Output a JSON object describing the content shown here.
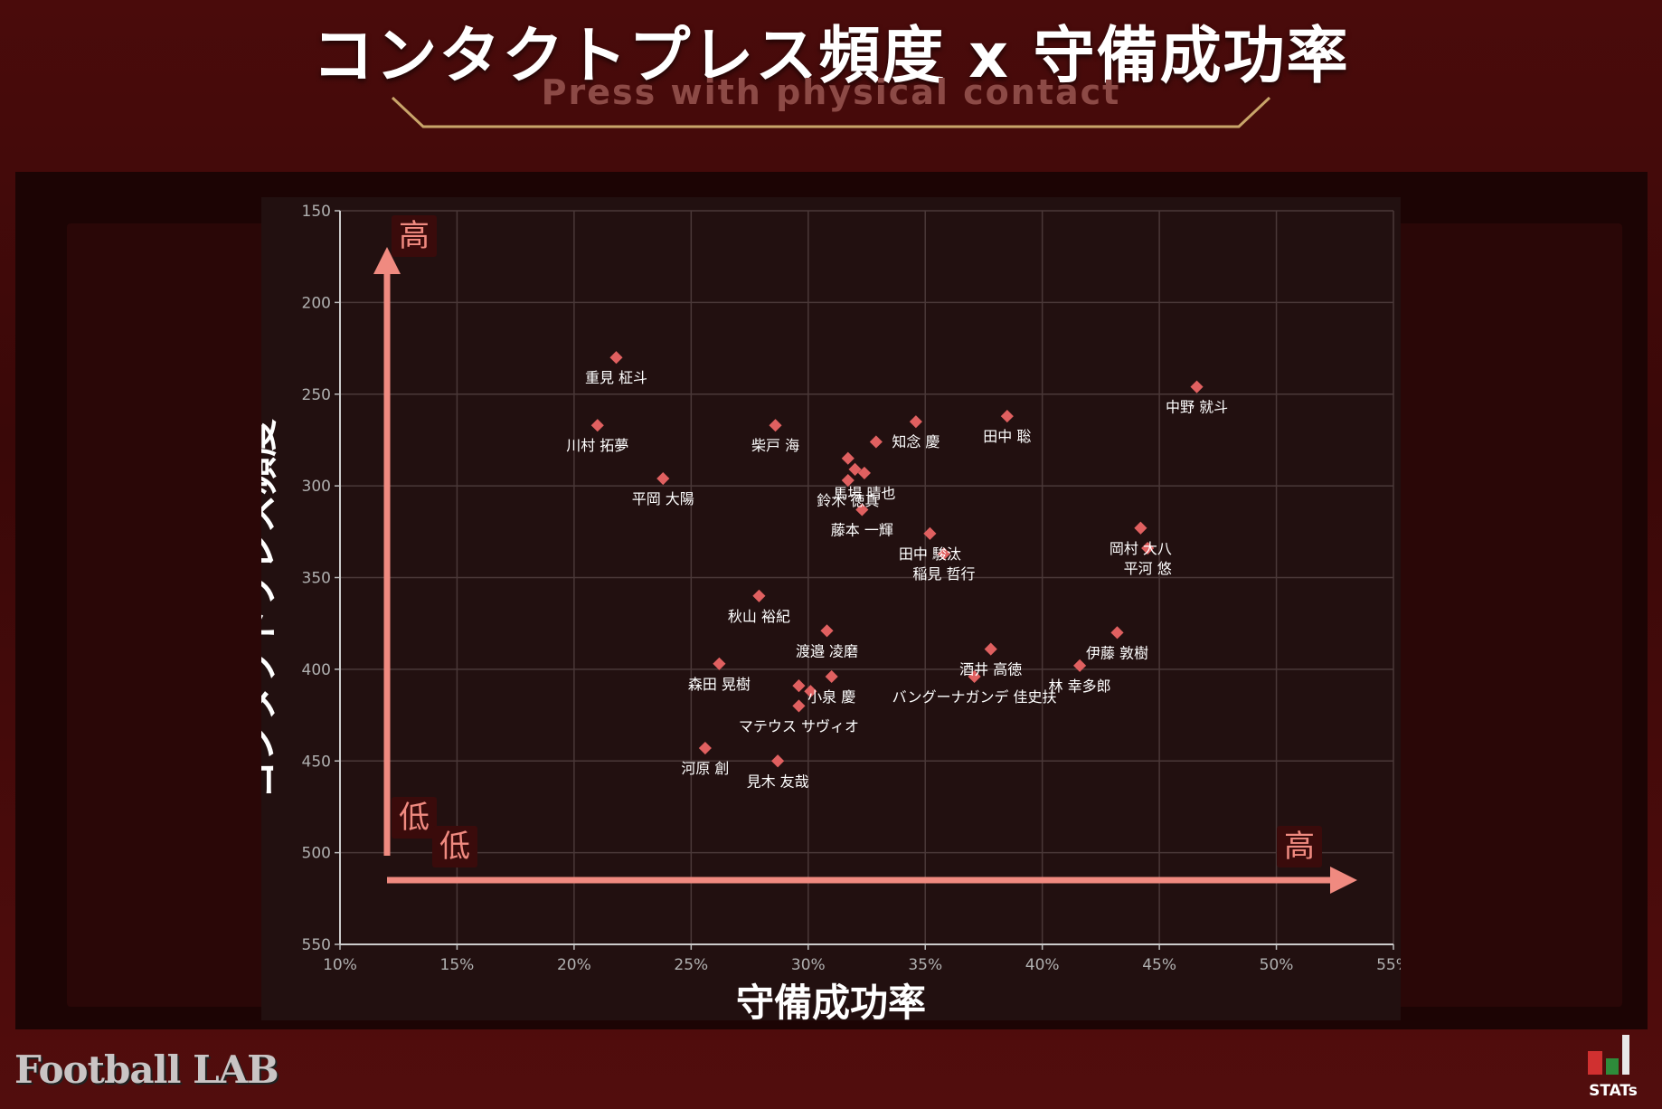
{
  "header": {
    "title": "コンタクトプレス頻度 x 守備成功率",
    "subtitle": "Press with physical contact"
  },
  "brand": {
    "left": "Football LAB",
    "right": "STATs"
  },
  "colors": {
    "accent": "#f08a80",
    "marker": "#e06060",
    "label_box": "#3a0b0b"
  },
  "chart_data": {
    "type": "scatter",
    "xlabel": "守備成功率",
    "ylabel": "コンタクトプレス頻度",
    "xlim": [
      0.1,
      0.55
    ],
    "ylim": [
      150,
      550
    ],
    "y_inverted": true,
    "xticks": [
      "10%",
      "15%",
      "20%",
      "25%",
      "30%",
      "35%",
      "40%",
      "45%",
      "50%",
      "55%"
    ],
    "yticks": [
      "150",
      "200",
      "250",
      "300",
      "350",
      "400",
      "450",
      "500",
      "550"
    ],
    "grid": true,
    "arrows": {
      "y_high": "高",
      "y_low": "低",
      "x_low": "低",
      "x_high": "高"
    },
    "points": [
      {
        "name": "重見 柾斗",
        "x": 0.218,
        "y": 230
      },
      {
        "name": "川村 拓夢",
        "x": 0.21,
        "y": 267
      },
      {
        "name": "平岡 大陽",
        "x": 0.238,
        "y": 296
      },
      {
        "name": "柴戸 海",
        "x": 0.286,
        "y": 267
      },
      {
        "name": "知念 慶",
        "x": 0.346,
        "y": 265
      },
      {
        "name": "",
        "x": 0.329,
        "y": 276
      },
      {
        "name": "田中 聡",
        "x": 0.385,
        "y": 262
      },
      {
        "name": "中野 就斗",
        "x": 0.466,
        "y": 246
      },
      {
        "name": "",
        "x": 0.317,
        "y": 285
      },
      {
        "name": "",
        "x": 0.32,
        "y": 291
      },
      {
        "name": "馬場 晴也",
        "x": 0.324,
        "y": 293
      },
      {
        "name": "鈴木 徳真",
        "x": 0.317,
        "y": 297
      },
      {
        "name": "藤本 一輝",
        "x": 0.323,
        "y": 313
      },
      {
        "name": "田中 駿汰",
        "x": 0.352,
        "y": 326
      },
      {
        "name": "稲見 哲行",
        "x": 0.358,
        "y": 337
      },
      {
        "name": "岡村 大八",
        "x": 0.442,
        "y": 323
      },
      {
        "name": "平河 悠",
        "x": 0.445,
        "y": 334
      },
      {
        "name": "秋山 裕紀",
        "x": 0.279,
        "y": 360
      },
      {
        "name": "渡邉 凌磨",
        "x": 0.308,
        "y": 379
      },
      {
        "name": "酒井 高徳",
        "x": 0.378,
        "y": 389
      },
      {
        "name": "伊藤 敦樹",
        "x": 0.432,
        "y": 380
      },
      {
        "name": "森田 晃樹",
        "x": 0.262,
        "y": 397
      },
      {
        "name": "林 幸多郎",
        "x": 0.416,
        "y": 398
      },
      {
        "name": "小泉 慶",
        "x": 0.31,
        "y": 404
      },
      {
        "name": "バングーナガンデ 佳史扶",
        "x": 0.371,
        "y": 404
      },
      {
        "name": "",
        "x": 0.296,
        "y": 409
      },
      {
        "name": "",
        "x": 0.301,
        "y": 412
      },
      {
        "name": "マテウス サヴィオ",
        "x": 0.296,
        "y": 420
      },
      {
        "name": "河原 創",
        "x": 0.256,
        "y": 443
      },
      {
        "name": "見木 友哉",
        "x": 0.287,
        "y": 450
      }
    ]
  }
}
